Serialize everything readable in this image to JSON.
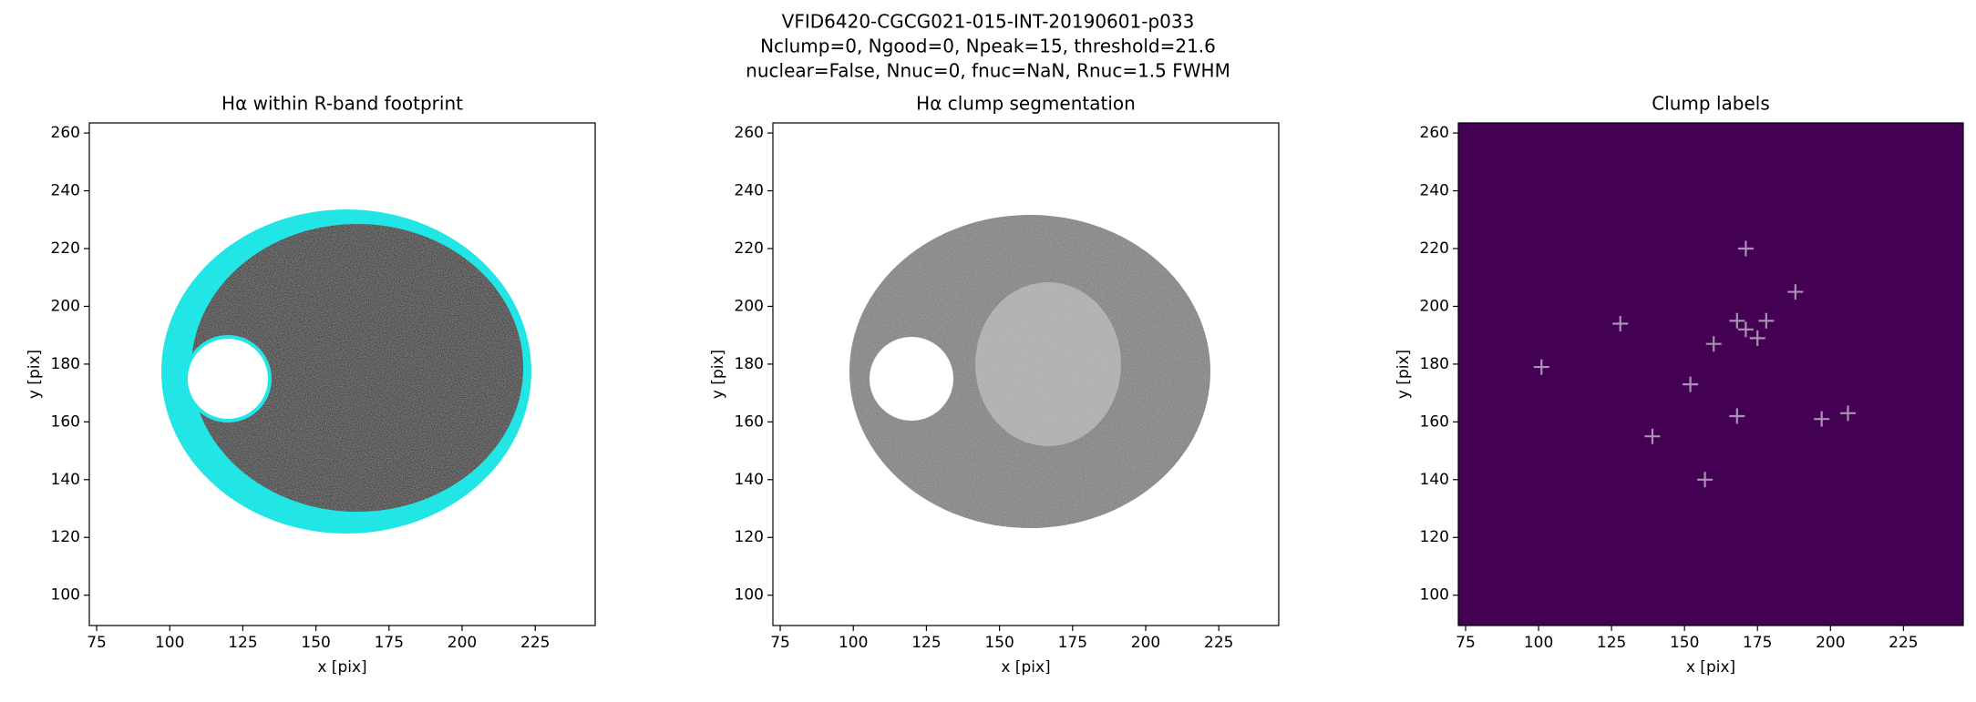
{
  "figure": {
    "title_lines": [
      "VFID6420-CGCG021-015-INT-20190601-p033",
      "Nclump=0, Ngood=0, Npeak=15, threshold=21.6",
      "nuclear=False, Nnuc=0, fnuc=NaN, Rnuc=1.5 FWHM"
    ]
  },
  "chart_data": [
    {
      "type": "image",
      "title": "Hα within R-band footprint",
      "xlabel": "x [pix]",
      "ylabel": "y [pix]",
      "xlim": [
        72.5,
        245.5
      ],
      "ylim": [
        89.5,
        263.5
      ],
      "xticks": [
        75,
        100,
        125,
        150,
        175,
        200,
        225
      ],
      "yticks": [
        100,
        120,
        140,
        160,
        180,
        200,
        220,
        240,
        260
      ]
    },
    {
      "type": "image",
      "title": "Hα clump segmentation",
      "xlabel": "x [pix]",
      "ylabel": "y [pix]",
      "xlim": [
        72.5,
        245.5
      ],
      "ylim": [
        89.5,
        263.5
      ],
      "xticks": [
        75,
        100,
        125,
        150,
        175,
        200,
        225
      ],
      "yticks": [
        100,
        120,
        140,
        160,
        180,
        200,
        220,
        240,
        260
      ]
    },
    {
      "type": "scatter",
      "title": "Clump labels",
      "xlabel": "x [pix]",
      "ylabel": "y [pix]",
      "background": "#440154",
      "xlim": [
        72.5,
        245.5
      ],
      "ylim": [
        89.5,
        263.5
      ],
      "xticks": [
        75,
        100,
        125,
        150,
        175,
        200,
        225
      ],
      "yticks": [
        100,
        120,
        140,
        160,
        180,
        200,
        220,
        240,
        260
      ],
      "series": [
        {
          "color": "#a893b3",
          "x": [
            171,
            188,
            128,
            168,
            171,
            178,
            175,
            160,
            101,
            152,
            168,
            197,
            206,
            139,
            157
          ],
          "values": [
            220,
            205,
            194,
            195,
            192,
            195,
            189,
            187,
            179,
            173,
            162,
            161,
            163,
            155,
            140
          ]
        }
      ]
    }
  ]
}
